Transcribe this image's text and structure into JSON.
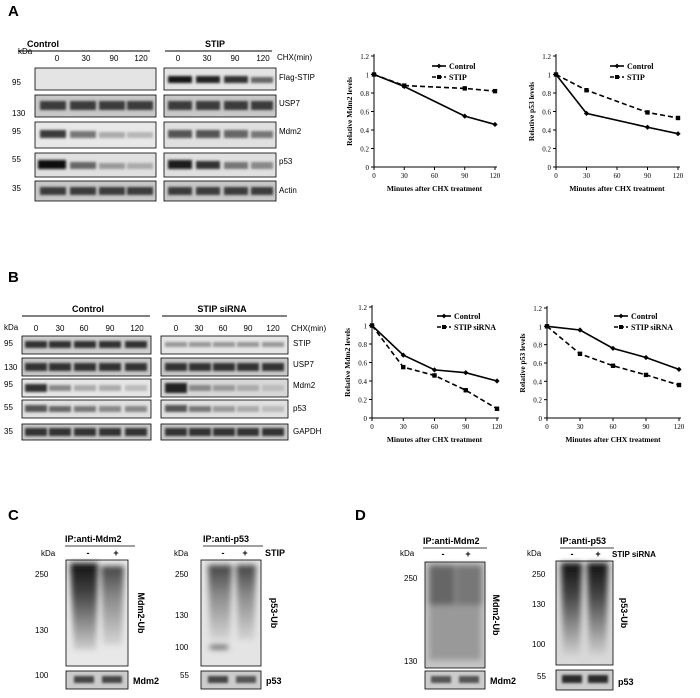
{
  "panel_letters": {
    "a": "A",
    "b": "B",
    "c": "C",
    "d": "D"
  },
  "blot_a": {
    "kda_label": "kDa",
    "group_left": "Control",
    "group_right": "STIP",
    "treatment_label": "CHX(min)",
    "timepoints": [
      "0",
      "30",
      "90",
      "120"
    ],
    "markers": [
      "95",
      "130",
      "95",
      "55",
      "35"
    ],
    "bands": [
      "Flag-STIP",
      "USP7",
      "Mdm2",
      "p53",
      "Actin"
    ]
  },
  "blot_b": {
    "kda_label": "kDa",
    "group_left": "Control",
    "group_right": "STIP siRNA",
    "treatment_label": "CHX(min)",
    "timepoints": [
      "0",
      "30",
      "60",
      "90",
      "120"
    ],
    "markers": [
      "95",
      "130",
      "95",
      "55",
      "35"
    ],
    "bands": [
      "STIP",
      "USP7",
      "Mdm2",
      "p53",
      "GAPDH"
    ]
  },
  "panel_c": {
    "left_title": "IP:anti-Mdm2",
    "right_title": "IP:anti-p53",
    "kda_label": "kDa",
    "lane_minus": "-",
    "lane_plus": "+",
    "treatment": "STIP",
    "left_markers": [
      "250",
      "130",
      "100"
    ],
    "right_markers": [
      "250",
      "130",
      "100",
      "55"
    ],
    "left_ub_label": "Mdm2-Ub",
    "right_ub_label": "p53-Ub",
    "left_bottom_label": "Mdm2",
    "right_bottom_label": "p53"
  },
  "panel_d": {
    "left_title": "IP:anti-Mdm2",
    "right_title": "IP:anti-p53",
    "kda_label": "kDa",
    "lane_minus": "-",
    "lane_plus": "+",
    "treatment": "STIP siRNA",
    "left_markers": [
      "250",
      "130"
    ],
    "right_markers": [
      "250",
      "130",
      "100",
      "55"
    ],
    "left_ub_label": "Mdm2-Ub",
    "right_ub_label": "p53-Ub",
    "left_bottom_label": "Mdm2",
    "right_bottom_label": "p53"
  },
  "chart_data": [
    {
      "type": "line",
      "title": "",
      "xlabel": "Minutes after CHX treatment",
      "ylabel": "Relative Mdm2 levels",
      "x": [
        0,
        30,
        90,
        120
      ],
      "xticks": [
        "0",
        "30",
        "60",
        "90",
        "120"
      ],
      "yticks": [
        "0",
        "0.2",
        "0.4",
        "0.6",
        "0.8",
        "1",
        "1.2"
      ],
      "xlim": [
        0,
        120
      ],
      "ylim": [
        0,
        1.2
      ],
      "series": [
        {
          "name": "Control",
          "style": "solid",
          "values": [
            1.0,
            0.87,
            0.55,
            0.46
          ]
        },
        {
          "name": "STIP",
          "style": "dashed",
          "values": [
            1.0,
            0.88,
            0.85,
            0.82
          ]
        }
      ]
    },
    {
      "type": "line",
      "title": "",
      "xlabel": "Minutes after CHX treatment",
      "ylabel": "Relative p53 levels",
      "x": [
        0,
        30,
        90,
        120
      ],
      "xticks": [
        "0",
        "30",
        "60",
        "90",
        "120"
      ],
      "yticks": [
        "0",
        "0.2",
        "0.4",
        "0.6",
        "0.8",
        "1",
        "1.2"
      ],
      "xlim": [
        0,
        120
      ],
      "ylim": [
        0,
        1.2
      ],
      "series": [
        {
          "name": "Control",
          "style": "solid",
          "values": [
            1.0,
            0.58,
            0.43,
            0.36
          ]
        },
        {
          "name": "STIP",
          "style": "dashed",
          "values": [
            1.0,
            0.83,
            0.59,
            0.53
          ]
        }
      ]
    },
    {
      "type": "line",
      "title": "",
      "xlabel": "Minutes after CHX treatment",
      "ylabel": "Relative Mdm2 levels",
      "x": [
        0,
        30,
        60,
        90,
        120
      ],
      "xticks": [
        "0",
        "30",
        "60",
        "90",
        "120"
      ],
      "yticks": [
        "0",
        "0.2",
        "0.4",
        "0.6",
        "0.8",
        "1",
        "1.2"
      ],
      "xlim": [
        0,
        120
      ],
      "ylim": [
        0,
        1.2
      ],
      "series": [
        {
          "name": "Control",
          "style": "solid",
          "values": [
            1.0,
            0.68,
            0.52,
            0.49,
            0.4
          ]
        },
        {
          "name": "STIP siRNA",
          "style": "dashed",
          "values": [
            1.0,
            0.55,
            0.46,
            0.3,
            0.1
          ]
        }
      ]
    },
    {
      "type": "line",
      "title": "",
      "xlabel": "Minutes after CHX treatment",
      "ylabel": "Relative p53 levels",
      "x": [
        0,
        30,
        60,
        90,
        120
      ],
      "xticks": [
        "0",
        "30",
        "60",
        "90",
        "120"
      ],
      "yticks": [
        "0",
        "0.2",
        "0.4",
        "0.6",
        "0.8",
        "1",
        "1.2"
      ],
      "xlim": [
        0,
        120
      ],
      "ylim": [
        0,
        1.2
      ],
      "series": [
        {
          "name": "Control",
          "style": "solid",
          "values": [
            1.0,
            0.96,
            0.76,
            0.66,
            0.53
          ]
        },
        {
          "name": "STIP siRNA",
          "style": "dashed",
          "values": [
            1.0,
            0.7,
            0.57,
            0.47,
            0.36
          ]
        }
      ]
    }
  ]
}
